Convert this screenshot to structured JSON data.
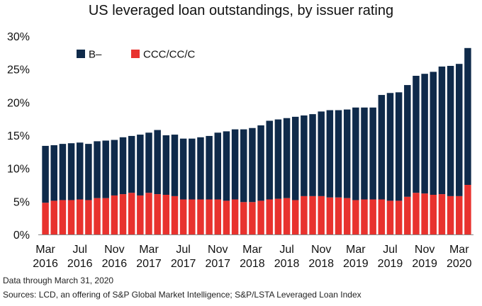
{
  "chart_data": {
    "type": "bar",
    "stacked": true,
    "title": "US leveraged loan outstandings, by issuer rating",
    "y_axis": {
      "min": 0,
      "max": 30,
      "step": 5,
      "tick_labels": [
        "0%",
        "5%",
        "10%",
        "15%",
        "20%",
        "25%",
        "30%"
      ]
    },
    "x_tick_labels": [
      {
        "index": 0,
        "line1": "Mar",
        "line2": "2016"
      },
      {
        "index": 4,
        "line1": "Jul",
        "line2": "2016"
      },
      {
        "index": 8,
        "line1": "Nov",
        "line2": "2016"
      },
      {
        "index": 12,
        "line1": "Mar",
        "line2": "2017"
      },
      {
        "index": 16,
        "line1": "Jul",
        "line2": "2017"
      },
      {
        "index": 20,
        "line1": "Nov",
        "line2": "2017"
      },
      {
        "index": 24,
        "line1": "Mar",
        "line2": "2018"
      },
      {
        "index": 28,
        "line1": "Jul",
        "line2": "2018"
      },
      {
        "index": 32,
        "line1": "Nov",
        "line2": "2018"
      },
      {
        "index": 36,
        "line1": "Mar",
        "line2": "2019"
      },
      {
        "index": 40,
        "line1": "Jul",
        "line2": "2019"
      },
      {
        "index": 44,
        "line1": "Nov",
        "line2": "2019"
      },
      {
        "index": 48,
        "line1": "Mar",
        "line2": "2020"
      }
    ],
    "legend_position": "top-left",
    "grid": false,
    "series": [
      {
        "name": "CCC/CC/C",
        "color": "#e8322e",
        "values": [
          4.8,
          5.1,
          5.2,
          5.2,
          5.3,
          5.2,
          5.5,
          5.5,
          5.9,
          6.1,
          6.3,
          5.9,
          6.3,
          6.1,
          6.0,
          5.8,
          5.3,
          5.3,
          5.3,
          5.3,
          5.3,
          5.1,
          5.3,
          4.9,
          4.9,
          5.1,
          5.3,
          5.4,
          5.5,
          5.2,
          5.8,
          5.8,
          5.8,
          5.6,
          5.6,
          5.5,
          5.2,
          5.3,
          5.3,
          5.3,
          5.1,
          5.1,
          5.7,
          6.3,
          6.2,
          6.0,
          6.1,
          5.8,
          5.8,
          7.5
        ]
      },
      {
        "name": "B–",
        "color": "#0f2a4a",
        "values": [
          8.6,
          8.4,
          8.5,
          8.6,
          8.6,
          8.5,
          8.6,
          8.7,
          8.4,
          8.6,
          8.6,
          9.2,
          9.1,
          9.7,
          9.0,
          9.3,
          9.2,
          9.2,
          9.4,
          9.6,
          10.1,
          10.5,
          10.6,
          11.0,
          11.2,
          11.4,
          11.9,
          12.0,
          12.1,
          12.6,
          12.2,
          12.4,
          12.8,
          13.2,
          13.2,
          13.4,
          14.0,
          13.9,
          13.9,
          15.8,
          16.3,
          16.4,
          16.9,
          17.7,
          18.1,
          18.6,
          19.3,
          19.7,
          20.0,
          20.7
        ]
      }
    ]
  },
  "footnotes": {
    "note": "Data through March 31, 2020",
    "source": "Sources: LCD, an offering of S&P Global Market Intelligence; S&P/LSTA  Leveraged Loan Index"
  }
}
